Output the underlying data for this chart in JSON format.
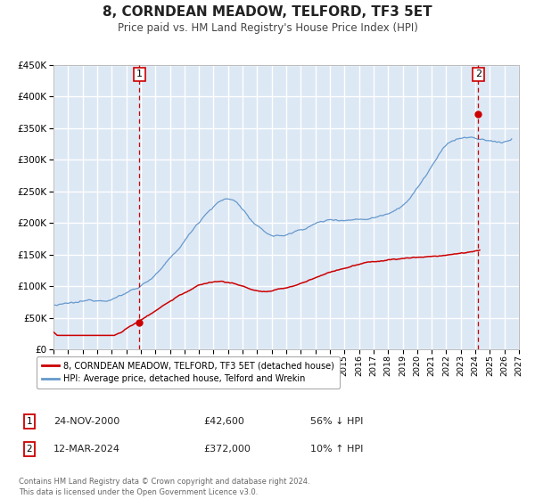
{
  "title": "8, CORNDEAN MEADOW, TELFORD, TF3 5ET",
  "subtitle": "Price paid vs. HM Land Registry's House Price Index (HPI)",
  "title_fontsize": 11,
  "subtitle_fontsize": 8.5,
  "ylim": [
    0,
    450000
  ],
  "xlim_start": 1995,
  "xlim_end": 2027,
  "background_color": "#ffffff",
  "plot_bg_color": "#dde8f5",
  "grid_color": "#ffffff",
  "legend_label_red": "8, CORNDEAN MEADOW, TELFORD, TF3 5ET (detached house)",
  "legend_label_blue": "HPI: Average price, detached house, Telford and Wrekin",
  "sale1_date_label": "24-NOV-2000",
  "sale1_price_label": "£42,600",
  "sale1_hpi_label": "56% ↓ HPI",
  "sale1_year": 2000.9,
  "sale1_price": 42600,
  "sale2_date_label": "12-MAR-2024",
  "sale2_price_label": "£372,000",
  "sale2_hpi_label": "10% ↑ HPI",
  "sale2_year": 2024.2,
  "sale2_price": 372000,
  "red_color": "#cc0000",
  "blue_color": "#6699cc",
  "vline_color": "#cc0000",
  "footnote": "Contains HM Land Registry data © Crown copyright and database right 2024.\nThis data is licensed under the Open Government Licence v3.0."
}
